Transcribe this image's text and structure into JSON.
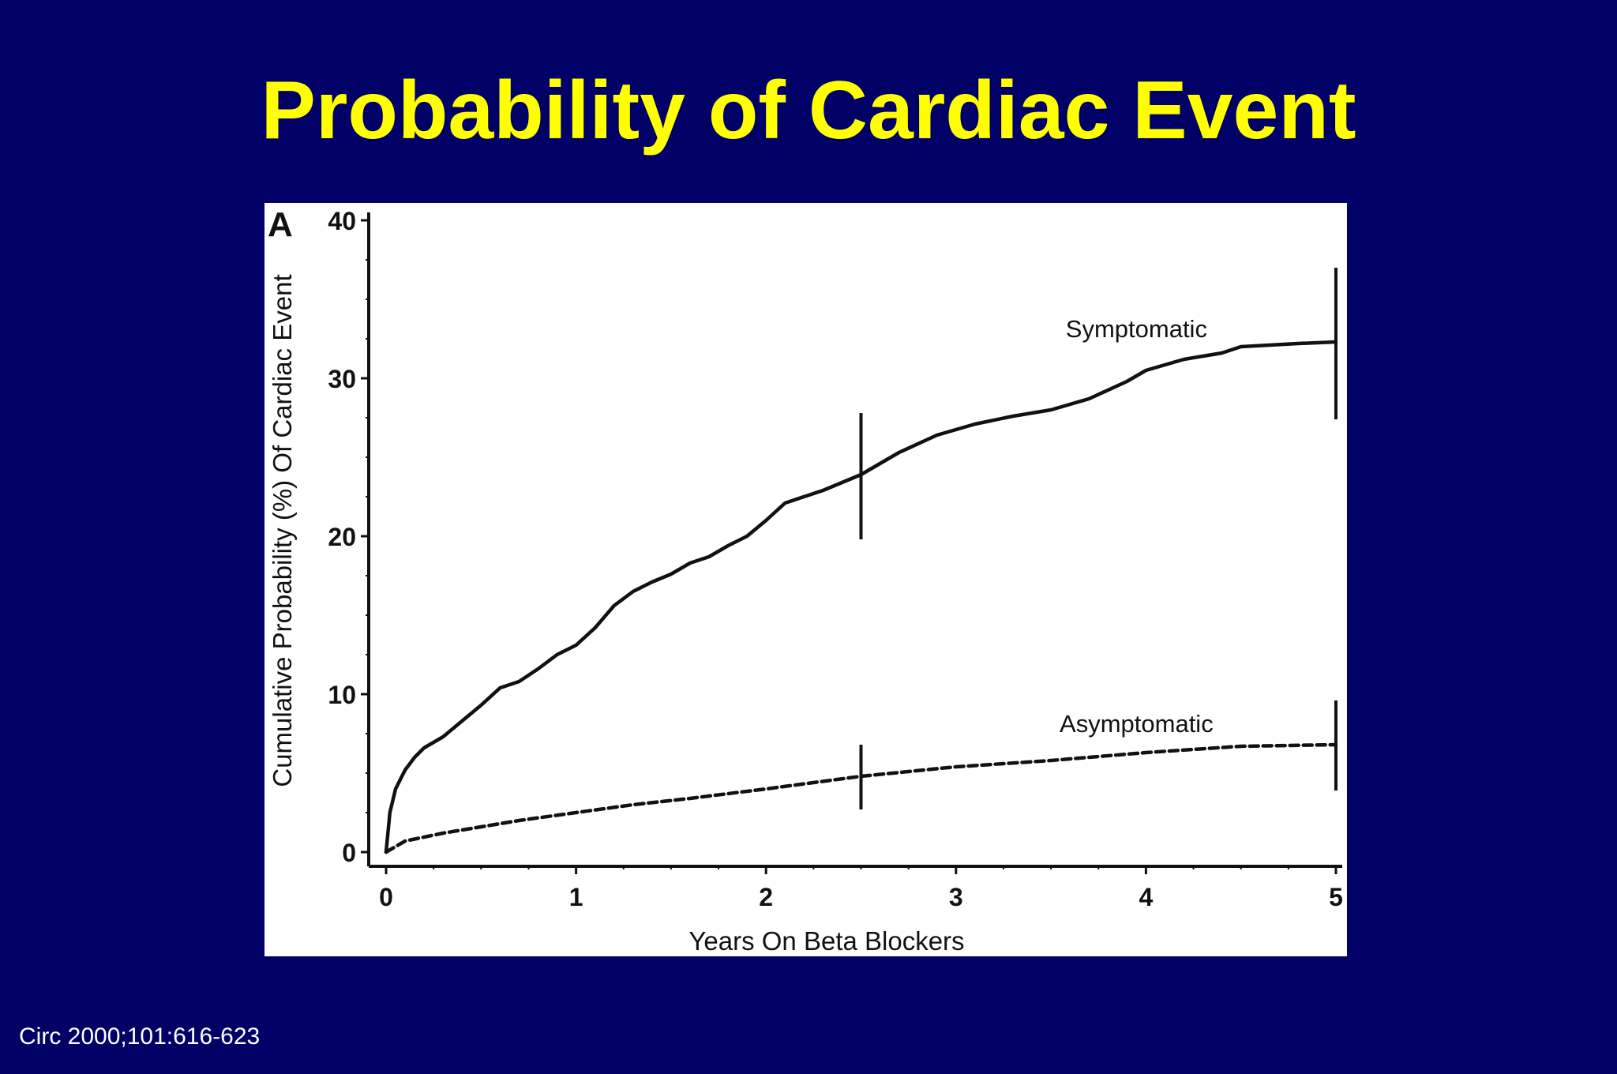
{
  "slide": {
    "title": "Probability of Cardiac Event",
    "citation": "Circ 2000;101:616-623",
    "title_color": "#ffff00",
    "background_color": "#000066"
  },
  "chart_data": {
    "type": "line",
    "panel_label": "A",
    "xlabel": "Years On Beta Blockers",
    "ylabel": "Cumulative Probability (%) Of Cardiac Event",
    "xlim": [
      0,
      5
    ],
    "ylim": [
      0,
      40
    ],
    "x_ticks": [
      0,
      1,
      2,
      3,
      4,
      5
    ],
    "y_ticks": [
      0,
      10,
      20,
      30,
      40
    ],
    "grid": false,
    "legend": "none (series labeled inline)",
    "series": [
      {
        "name": "Symptomatic",
        "line_style": "solid",
        "x": [
          0,
          0.02,
          0.05,
          0.1,
          0.15,
          0.2,
          0.3,
          0.4,
          0.5,
          0.6,
          0.7,
          0.8,
          0.9,
          1.0,
          1.1,
          1.2,
          1.3,
          1.4,
          1.5,
          1.6,
          1.7,
          1.8,
          1.9,
          2.0,
          2.1,
          2.2,
          2.3,
          2.5,
          2.7,
          2.9,
          3.1,
          3.3,
          3.5,
          3.7,
          3.9,
          4.0,
          4.2,
          4.4,
          4.5,
          4.8,
          5.0
        ],
        "y": [
          0,
          2.5,
          4.0,
          5.2,
          6.0,
          6.6,
          7.3,
          8.3,
          9.3,
          10.4,
          10.8,
          11.6,
          12.5,
          13.1,
          14.2,
          15.6,
          16.5,
          17.1,
          17.6,
          18.3,
          18.7,
          19.4,
          20.0,
          21.0,
          22.1,
          22.5,
          22.9,
          23.9,
          25.3,
          26.4,
          27.1,
          27.6,
          28.0,
          28.7,
          29.8,
          30.5,
          31.2,
          31.6,
          32.0,
          32.2,
          32.3
        ]
      },
      {
        "name": "Asymptomatic",
        "line_style": "dashed",
        "x": [
          0,
          0.1,
          0.3,
          0.5,
          0.7,
          1.0,
          1.3,
          1.6,
          2.0,
          2.5,
          3.0,
          3.5,
          4.0,
          4.5,
          5.0
        ],
        "y": [
          0,
          0.7,
          1.2,
          1.6,
          2.0,
          2.5,
          3.0,
          3.4,
          4.0,
          4.8,
          5.4,
          5.8,
          6.3,
          6.7,
          6.8
        ]
      }
    ],
    "censor_marks": [
      {
        "series": "Symptomatic",
        "x": 2.5,
        "y": 23.9,
        "low": 19.8,
        "high": 27.8
      },
      {
        "series": "Symptomatic",
        "x": 5.0,
        "y": 32.3,
        "low": 27.4,
        "high": 37.0
      },
      {
        "series": "Asymptomatic",
        "x": 2.5,
        "y": 4.8,
        "low": 2.7,
        "high": 6.8
      },
      {
        "series": "Asymptomatic",
        "x": 5.0,
        "y": 6.8,
        "low": 3.9,
        "high": 9.6
      }
    ],
    "annotations": [
      {
        "text": "Symptomatic",
        "x": 3.95,
        "y": 32.6
      },
      {
        "text": "Asymptomatic",
        "x": 3.95,
        "y": 7.6
      }
    ]
  }
}
